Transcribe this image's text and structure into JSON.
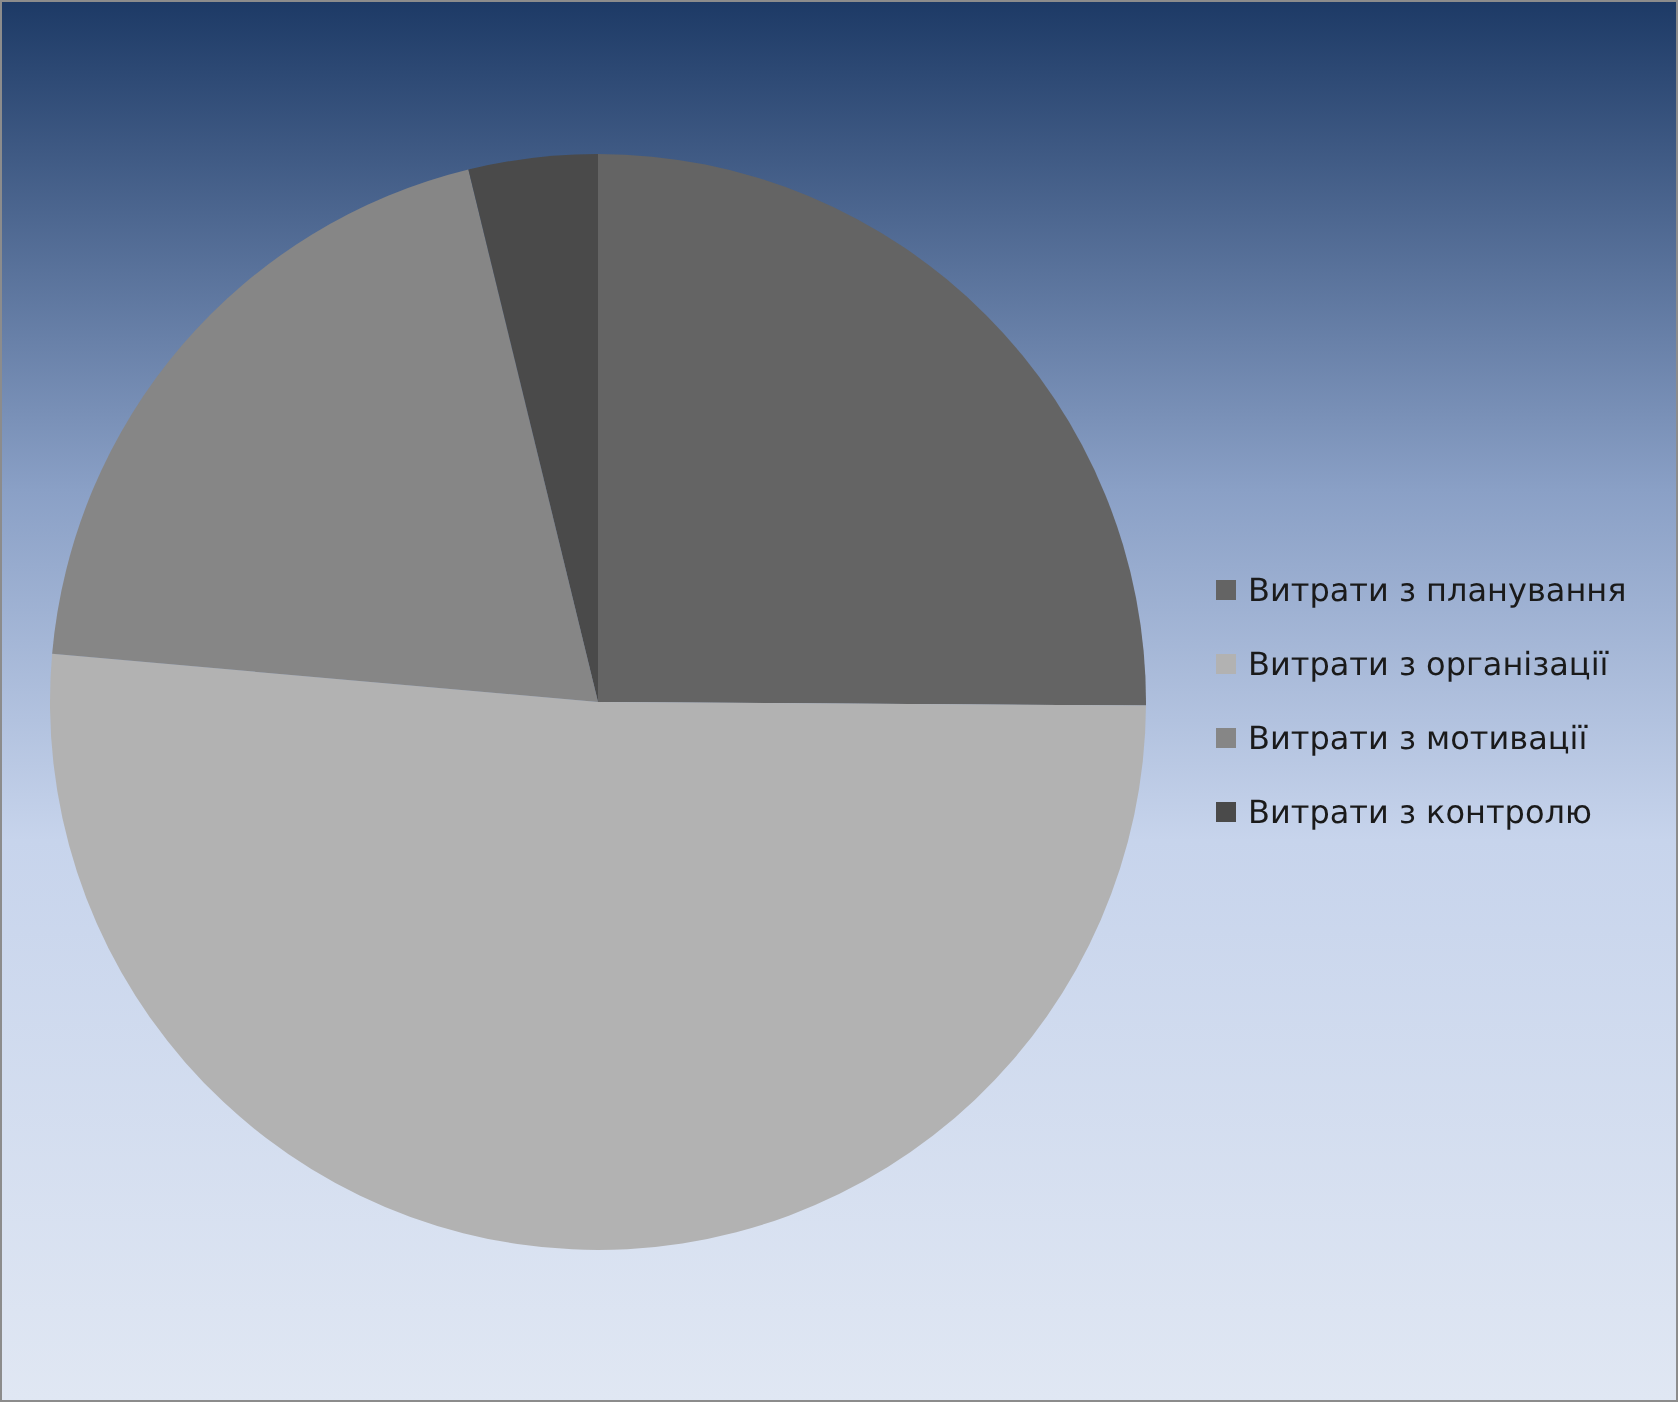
{
  "chart_data": {
    "type": "pie",
    "categories": [
      "Витрати з планування",
      "Витрати з організації",
      "Витрати з мотивації",
      "Витрати з контролю"
    ],
    "values": [
      25.1,
      51.3,
      19.8,
      3.8
    ],
    "colors": [
      "#646464",
      "#b2b2b2",
      "#868686",
      "#4a4a4a"
    ],
    "legend": "right"
  }
}
